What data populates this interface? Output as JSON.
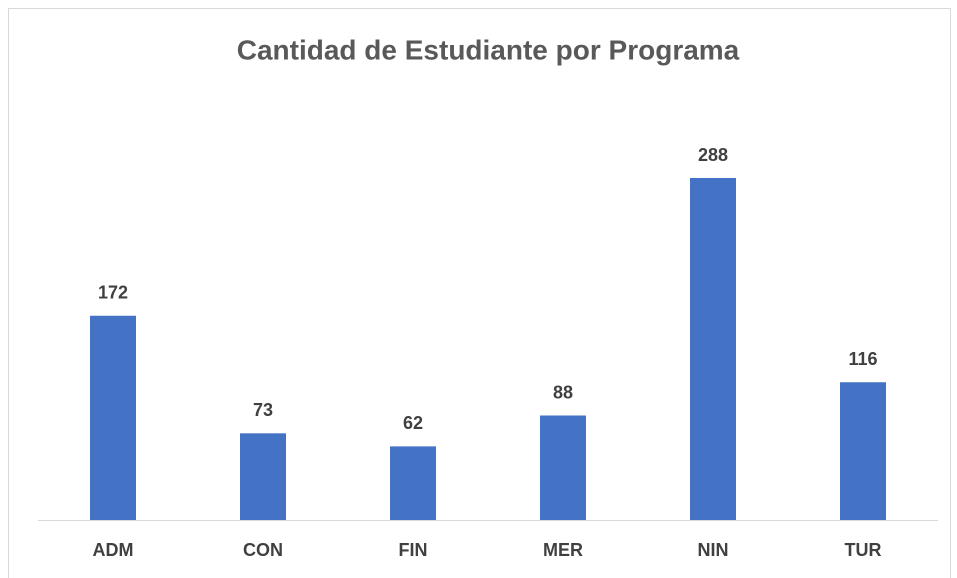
{
  "chart_data": {
    "type": "bar",
    "title": "Cantidad de Estudiante por Programa",
    "categories": [
      "ADM",
      "CON",
      "FIN",
      "MER",
      "NIN",
      "TUR"
    ],
    "values": [
      172,
      73,
      62,
      88,
      288,
      116
    ],
    "color": "#4472c4"
  }
}
